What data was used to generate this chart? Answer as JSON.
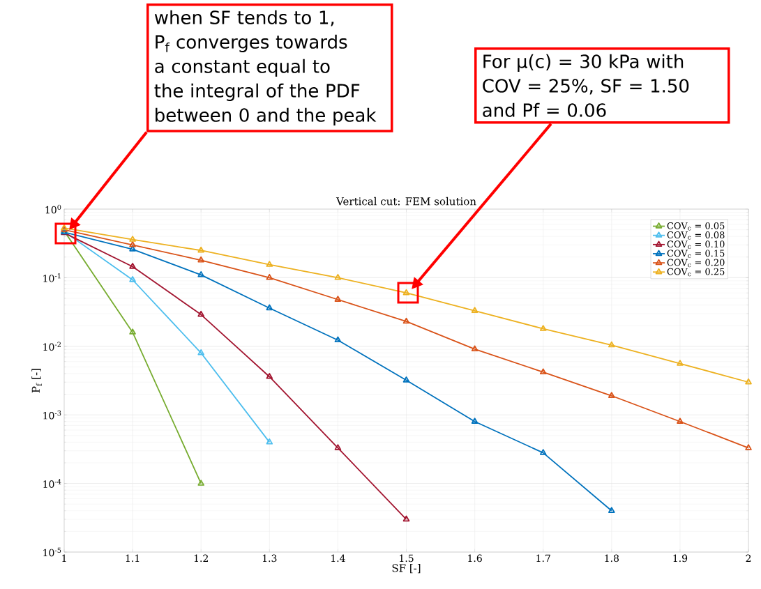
{
  "chart_data": {
    "type": "line",
    "title": "Vertical cut: FEM solution",
    "xlabel": "SF [-]",
    "ylabel": "P$_{f}$ [-]",
    "x": [
      1,
      1.1,
      1.2,
      1.3,
      1.4,
      1.5,
      1.6,
      1.7,
      1.8,
      1.9,
      2
    ],
    "series": [
      {
        "name": "COV$_{c}$ = 0.05",
        "color": "#77ac30",
        "values": [
          0.48,
          0.016,
          0.0001,
          null,
          null,
          null,
          null,
          null,
          null,
          null,
          null
        ]
      },
      {
        "name": "COV$_{c}$ = 0.08",
        "color": "#4dbeee",
        "values": [
          0.47,
          0.093,
          0.008,
          0.0004,
          null,
          null,
          null,
          null,
          null,
          null,
          null
        ]
      },
      {
        "name": "COV$_{c}$ = 0.10",
        "color": "#a2142f",
        "values": [
          0.45,
          0.145,
          0.029,
          0.0036,
          0.00033,
          3e-05,
          null,
          null,
          null,
          null,
          null
        ]
      },
      {
        "name": "COV$_{c}$ = 0.15",
        "color": "#0072bd",
        "values": [
          0.46,
          0.26,
          0.11,
          0.036,
          0.0123,
          0.0032,
          0.0008,
          0.00028,
          4e-05,
          null,
          null
        ]
      },
      {
        "name": "COV$_{c}$ = 0.20",
        "color": "#d95319",
        "values": [
          0.5,
          0.3,
          0.18,
          0.1,
          0.048,
          0.023,
          0.0091,
          0.0042,
          0.0019,
          0.0008,
          0.00033
        ]
      },
      {
        "name": "COV$_{c}$ = 0.25",
        "color": "#edb120",
        "values": [
          0.53,
          0.36,
          0.25,
          0.155,
          0.1,
          0.06,
          0.033,
          0.018,
          0.0104,
          0.0056,
          0.003
        ]
      }
    ],
    "xlim": [
      1,
      2
    ],
    "ylim": [
      1e-05,
      1
    ],
    "log": "y",
    "xticks": [
      1,
      1.1,
      1.2,
      1.3,
      1.4,
      1.5,
      1.6,
      1.7,
      1.8,
      1.9,
      2
    ],
    "yticks": [
      {
        "value": 1e-05,
        "label": "10$^{-5}$"
      },
      {
        "value": 0.0001,
        "label": "10$^{-4}$"
      },
      {
        "value": 0.001,
        "label": "10$^{-3}$"
      },
      {
        "value": 0.01,
        "label": "10$^{-2}$"
      },
      {
        "value": 0.1,
        "label": "10$^{-1}$"
      },
      {
        "value": 1,
        "label": "10$^{0}$"
      }
    ],
    "grid": true,
    "legend": "top right",
    "marker": "triangle",
    "line_style": "solid",
    "annotations": [
      "when SF tends to 1, P$_{f}$ converges towards a constant equal to the integral of the PDF between 0 and the peak",
      "For μ(c) = 30 kPa with COV = 25%, SF = 1.50 and Pf = 0.06"
    ]
  }
}
